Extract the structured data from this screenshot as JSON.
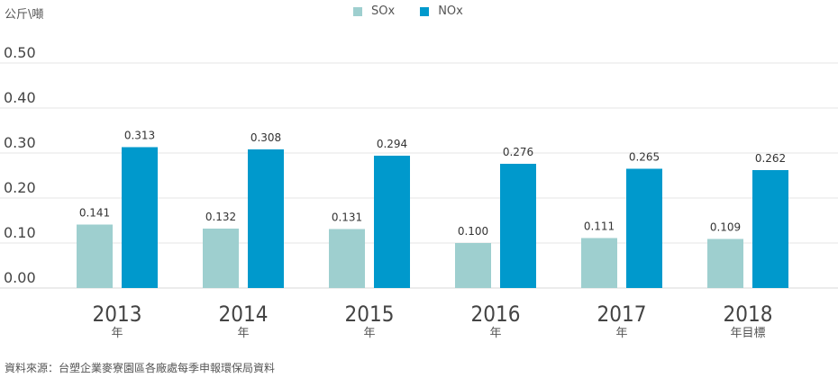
{
  "chart_data": {
    "type": "bar",
    "unit_label": "公斤\\噸",
    "categories": [
      "2013",
      "2014",
      "2015",
      "2016",
      "2017",
      "2018"
    ],
    "category_sublabels": [
      "年",
      "年",
      "年",
      "年",
      "年",
      "年目標"
    ],
    "series": [
      {
        "name": "SOx",
        "color": "#9ecfcf",
        "values": [
          0.141,
          0.132,
          0.131,
          0.1,
          0.111,
          0.109
        ]
      },
      {
        "name": "NOx",
        "color": "#0099cc",
        "values": [
          0.313,
          0.308,
          0.294,
          0.276,
          0.265,
          0.262
        ]
      }
    ],
    "value_labels": [
      [
        "0.141",
        "0.132",
        "0.131",
        "0.100",
        "0.111",
        "0.109"
      ],
      [
        "0.313",
        "0.308",
        "0.294",
        "0.276",
        "0.265",
        "0.262"
      ]
    ],
    "yticks": [
      "0.00",
      "0.10",
      "0.20",
      "0.30",
      "0.40",
      "0.50"
    ],
    "ylim": [
      0,
      0.5
    ],
    "grid": true,
    "legend_position": "top-center",
    "source": "資料來源：台塑企業麥寮園區各廠處每季申報環保局資料"
  }
}
